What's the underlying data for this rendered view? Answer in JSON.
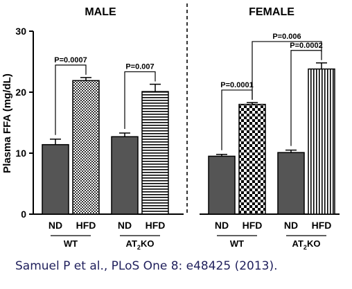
{
  "chart_data": {
    "type": "bar",
    "ylabel": "Plasma FFA (mg/dL)",
    "ylim": [
      0,
      30
    ],
    "yticks": [
      0,
      10,
      20,
      30
    ],
    "panels": [
      {
        "title": "MALE",
        "groups": [
          {
            "label": "WT",
            "label_sub": "",
            "label_suffix": "",
            "bars": [
              {
                "category": "ND",
                "value": 11.4,
                "error": 0.9,
                "pattern": "solid"
              },
              {
                "category": "HFD",
                "value": 21.9,
                "error": 0.5,
                "pattern": "checker-small"
              }
            ],
            "pvalue": "P=0.0007"
          },
          {
            "label": "AT",
            "label_sub": "2",
            "label_suffix": "KO",
            "bars": [
              {
                "category": "ND",
                "value": 12.7,
                "error": 0.6,
                "pattern": "solid"
              },
              {
                "category": "HFD",
                "value": 20.1,
                "error": 1.2,
                "pattern": "horizontal-lines"
              }
            ],
            "pvalue": "P=0.007"
          }
        ]
      },
      {
        "title": "FEMALE",
        "groups": [
          {
            "label": "WT",
            "label_sub": "",
            "label_suffix": "",
            "bars": [
              {
                "category": "ND",
                "value": 9.5,
                "error": 0.3,
                "pattern": "solid"
              },
              {
                "category": "HFD",
                "value": 18.0,
                "error": 0.3,
                "pattern": "checker-large"
              }
            ],
            "pvalue": "P=0.0001"
          },
          {
            "label": "AT",
            "label_sub": "2",
            "label_suffix": "KO",
            "bars": [
              {
                "category": "ND",
                "value": 10.1,
                "error": 0.4,
                "pattern": "solid"
              },
              {
                "category": "HFD",
                "value": 23.8,
                "error": 1.0,
                "pattern": "vertical-lines"
              }
            ],
            "pvalue": "P=0.0002"
          }
        ],
        "cross_comparison": {
          "pvalue": "P=0.006",
          "from": "WT HFD",
          "to": "AT2KO HFD"
        }
      }
    ]
  },
  "caption": "Samuel P et al., PLoS One 8: e48425 (2013).",
  "colors": {
    "solid_bar": "#555555",
    "axis": "#000000",
    "caption": "#1f1f5c"
  }
}
